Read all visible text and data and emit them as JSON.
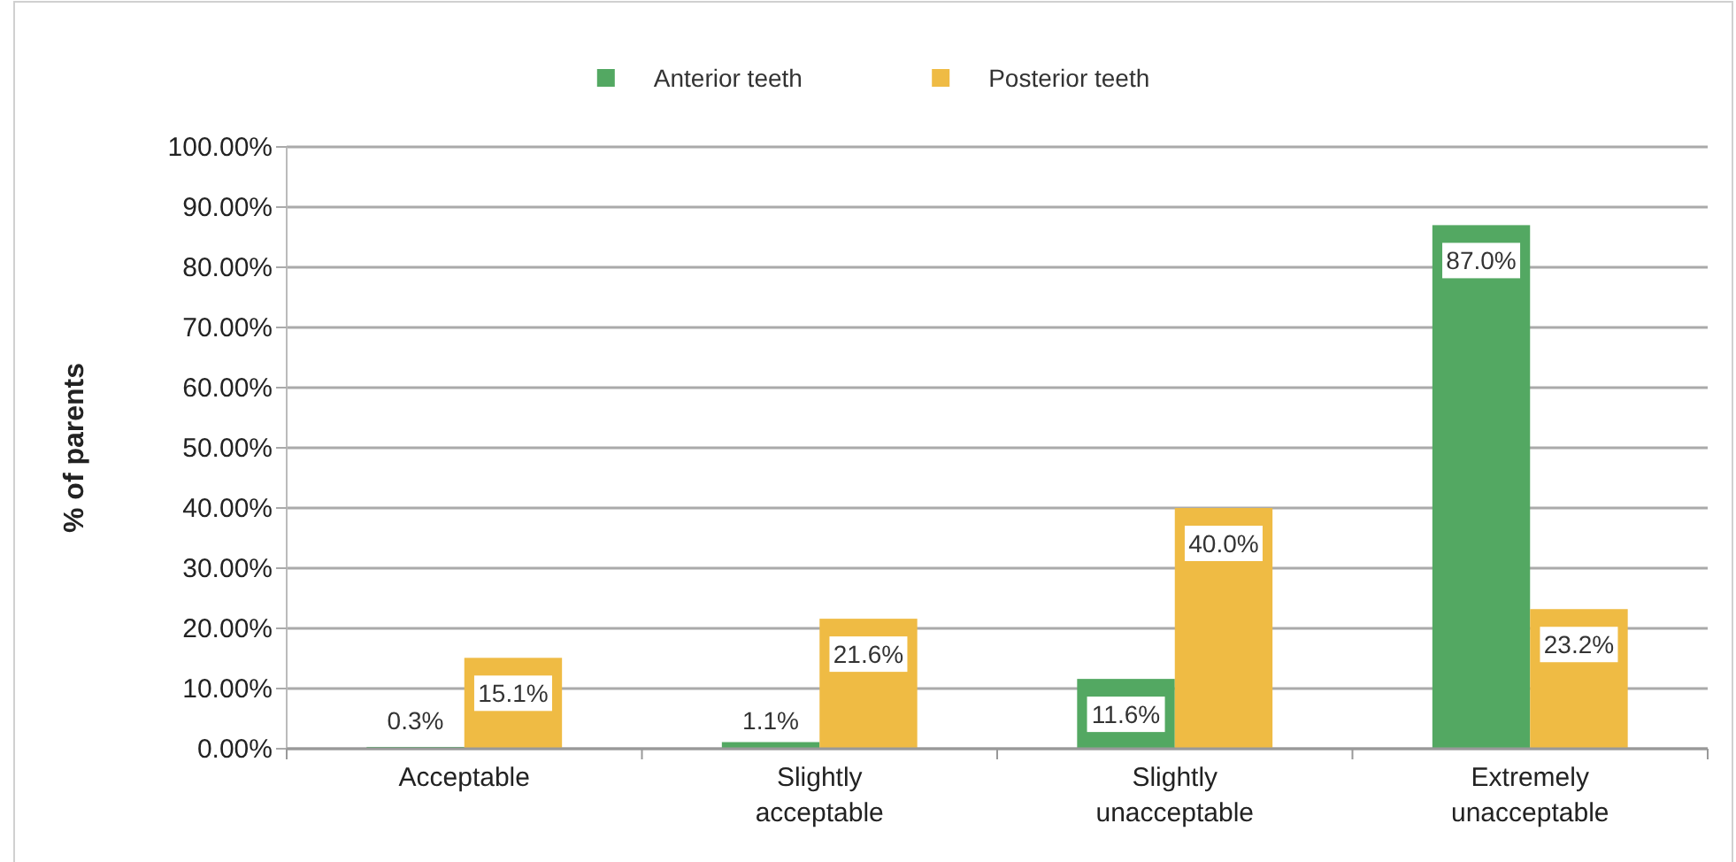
{
  "chart_data": {
    "type": "bar",
    "ylabel": "% of parents",
    "categories": [
      "Acceptable",
      "Slightly acceptable",
      "Slightly unacceptable",
      "Extremely unacceptable"
    ],
    "series": [
      {
        "name": "Anterior teeth",
        "color": "#53a862",
        "values": [
          0.3,
          1.1,
          11.6,
          87.0
        ],
        "value_labels": [
          "0.3%",
          "1.1%",
          "11.6%",
          "87.0%"
        ]
      },
      {
        "name": "Posterior teeth",
        "color": "#efbb44",
        "values": [
          15.1,
          21.6,
          40.0,
          23.2
        ],
        "value_labels": [
          "15.1%",
          "21.6%",
          "40.0%",
          "23.2%"
        ]
      }
    ],
    "ylim": [
      0,
      100
    ],
    "yticks": [
      {
        "value": 0,
        "label": "0.00%"
      },
      {
        "value": 10,
        "label": "10.00%"
      },
      {
        "value": 20,
        "label": "20.00%"
      },
      {
        "value": 30,
        "label": "30.00%"
      },
      {
        "value": 40,
        "label": "40.00%"
      },
      {
        "value": 50,
        "label": "50.00%"
      },
      {
        "value": 60,
        "label": "60.00%"
      },
      {
        "value": 70,
        "label": "70.00%"
      },
      {
        "value": 80,
        "label": "80.00%"
      },
      {
        "value": 90,
        "label": "90.00%"
      },
      {
        "value": 100,
        "label": "100.00%"
      }
    ],
    "grid": "y",
    "legend": "top"
  }
}
